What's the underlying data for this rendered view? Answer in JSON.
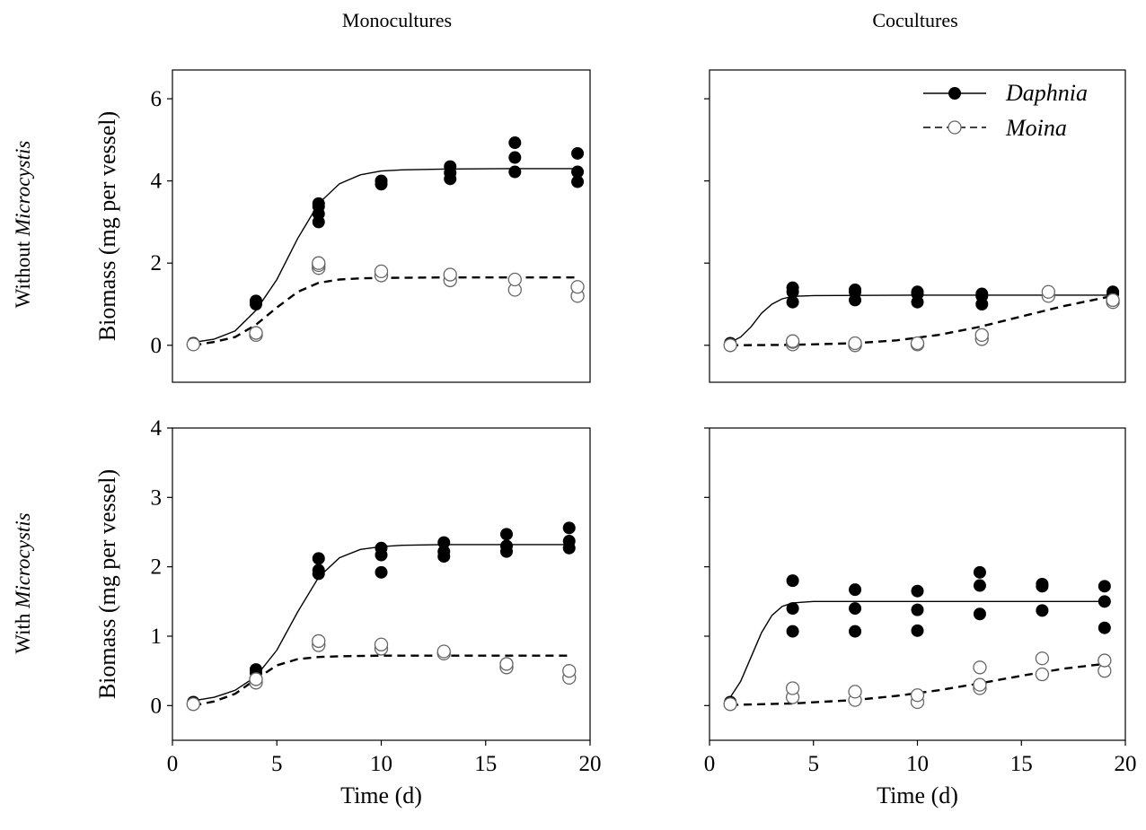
{
  "figure": {
    "col_titles": [
      "Monocultures",
      "Cocultures"
    ],
    "row_labels": [
      {
        "prefix": "Without ",
        "italic": "Microcystis"
      },
      {
        "prefix": "With ",
        "italic": "Microcystis"
      }
    ]
  },
  "legend": {
    "daphnia": "Daphnia",
    "moina": "Moina",
    "placement": "top-right of upper coculture panel"
  },
  "chart_data": [
    {
      "type": "scatter",
      "panel": "Without Microcystis, Monocultures",
      "ylabel": "Biomass (mg per vessel)",
      "xlabel": "",
      "xlim": [
        0,
        20
      ],
      "ylim": [
        -0.9,
        6.7
      ],
      "yticks": [
        0,
        2,
        4,
        6
      ],
      "xticks": [],
      "show_yticks": true,
      "show_xticks": false,
      "series": [
        {
          "name": "Daphnia",
          "marker": "filled",
          "points": [
            [
              1,
              0.05
            ],
            [
              4,
              1.0
            ],
            [
              4,
              1.08
            ],
            [
              7,
              3.0
            ],
            [
              7,
              3.2
            ],
            [
              7,
              3.38
            ],
            [
              7,
              3.45
            ],
            [
              10,
              3.92
            ],
            [
              10,
              4.0
            ],
            [
              13.3,
              4.05
            ],
            [
              13.3,
              4.2
            ],
            [
              13.3,
              4.35
            ],
            [
              16.4,
              4.22
            ],
            [
              16.4,
              4.57
            ],
            [
              16.4,
              4.93
            ],
            [
              19.4,
              3.98
            ],
            [
              19.4,
              4.22
            ],
            [
              19.4,
              4.67
            ]
          ],
          "curve": [
            [
              1,
              0.07
            ],
            [
              2,
              0.15
            ],
            [
              3,
              0.35
            ],
            [
              4,
              0.85
            ],
            [
              5,
              1.6
            ],
            [
              6,
              2.6
            ],
            [
              7,
              3.45
            ],
            [
              8,
              3.93
            ],
            [
              9,
              4.15
            ],
            [
              10,
              4.24
            ],
            [
              11,
              4.27
            ],
            [
              13,
              4.29
            ],
            [
              16,
              4.3
            ],
            [
              19.4,
              4.3
            ]
          ]
        },
        {
          "name": "Moina",
          "marker": "open",
          "points": [
            [
              1,
              0.02
            ],
            [
              4,
              0.25
            ],
            [
              4,
              0.3
            ],
            [
              7,
              1.88
            ],
            [
              7,
              1.95
            ],
            [
              7,
              2.0
            ],
            [
              10,
              1.7
            ],
            [
              10,
              1.8
            ],
            [
              13.3,
              1.58
            ],
            [
              13.3,
              1.72
            ],
            [
              16.4,
              1.35
            ],
            [
              16.4,
              1.6
            ],
            [
              19.4,
              1.2
            ],
            [
              19.4,
              1.42
            ]
          ],
          "curve": [
            [
              1,
              0.0
            ],
            [
              2,
              0.08
            ],
            [
              3,
              0.2
            ],
            [
              4,
              0.5
            ],
            [
              5,
              0.92
            ],
            [
              6,
              1.3
            ],
            [
              7,
              1.52
            ],
            [
              8,
              1.6
            ],
            [
              9,
              1.63
            ],
            [
              10,
              1.64
            ],
            [
              13,
              1.65
            ],
            [
              19.4,
              1.65
            ]
          ]
        }
      ]
    },
    {
      "type": "scatter",
      "panel": "Without Microcystis, Cocultures",
      "ylabel": "",
      "xlabel": "",
      "xlim": [
        0,
        20
      ],
      "ylim": [
        -0.9,
        6.7
      ],
      "yticks": [
        0,
        2,
        4,
        6
      ],
      "xticks": [],
      "show_yticks": false,
      "show_xticks": false,
      "series": [
        {
          "name": "Daphnia",
          "marker": "filled",
          "points": [
            [
              1,
              0.05
            ],
            [
              4,
              1.05
            ],
            [
              4,
              1.3
            ],
            [
              4,
              1.4
            ],
            [
              7,
              1.1
            ],
            [
              7,
              1.3
            ],
            [
              7,
              1.35
            ],
            [
              10,
              1.05
            ],
            [
              10,
              1.25
            ],
            [
              10,
              1.3
            ],
            [
              13.1,
              1.0
            ],
            [
              13.1,
              1.2
            ],
            [
              13.1,
              1.25
            ],
            [
              16.3,
              1.2
            ],
            [
              19.4,
              1.25
            ],
            [
              19.4,
              1.3
            ]
          ],
          "curve": [
            [
              1,
              0.07
            ],
            [
              1.5,
              0.2
            ],
            [
              2,
              0.45
            ],
            [
              2.5,
              0.78
            ],
            [
              3,
              1.0
            ],
            [
              3.5,
              1.13
            ],
            [
              4,
              1.19
            ],
            [
              5,
              1.21
            ],
            [
              10,
              1.22
            ],
            [
              19.4,
              1.22
            ]
          ]
        },
        {
          "name": "Moina",
          "marker": "open",
          "points": [
            [
              1,
              0.0
            ],
            [
              4,
              0.02
            ],
            [
              4,
              0.08
            ],
            [
              4,
              0.1
            ],
            [
              7,
              0.0
            ],
            [
              7,
              0.05
            ],
            [
              10,
              0.02
            ],
            [
              10,
              0.05
            ],
            [
              13.1,
              0.15
            ],
            [
              13.1,
              0.25
            ],
            [
              16.3,
              1.2
            ],
            [
              16.3,
              1.3
            ],
            [
              19.4,
              1.05
            ],
            [
              19.4,
              1.1
            ]
          ],
          "curve": [
            [
              1,
              0.0
            ],
            [
              4,
              0.01
            ],
            [
              7,
              0.05
            ],
            [
              9,
              0.12
            ],
            [
              11,
              0.25
            ],
            [
              13,
              0.45
            ],
            [
              15,
              0.7
            ],
            [
              17,
              0.95
            ],
            [
              19.4,
              1.2
            ]
          ]
        }
      ]
    },
    {
      "type": "scatter",
      "panel": "With Microcystis, Monocultures",
      "ylabel": "Biomass (mg per vessel)",
      "xlabel": "Time (d)",
      "xlim": [
        0,
        20
      ],
      "ylim": [
        -0.5,
        4.0
      ],
      "yticks": [
        0,
        1,
        2,
        3,
        4
      ],
      "xticks": [
        0,
        5,
        10,
        15,
        20
      ],
      "show_yticks": true,
      "show_xticks": true,
      "series": [
        {
          "name": "Daphnia",
          "marker": "filled",
          "points": [
            [
              1,
              0.05
            ],
            [
              4,
              0.47
            ],
            [
              4,
              0.52
            ],
            [
              7,
              1.9
            ],
            [
              7,
              1.95
            ],
            [
              7,
              2.12
            ],
            [
              10,
              1.92
            ],
            [
              10,
              2.17
            ],
            [
              10,
              2.27
            ],
            [
              13,
              2.15
            ],
            [
              13,
              2.22
            ],
            [
              13,
              2.35
            ],
            [
              16,
              2.22
            ],
            [
              16,
              2.3
            ],
            [
              16,
              2.47
            ],
            [
              19,
              2.27
            ],
            [
              19,
              2.37
            ],
            [
              19,
              2.56
            ]
          ],
          "curve": [
            [
              1,
              0.07
            ],
            [
              2,
              0.12
            ],
            [
              3,
              0.22
            ],
            [
              4,
              0.42
            ],
            [
              5,
              0.8
            ],
            [
              6,
              1.35
            ],
            [
              7,
              1.85
            ],
            [
              8,
              2.13
            ],
            [
              9,
              2.25
            ],
            [
              10,
              2.29
            ],
            [
              11,
              2.31
            ],
            [
              13,
              2.32
            ],
            [
              19,
              2.32
            ]
          ]
        },
        {
          "name": "Moina",
          "marker": "open",
          "points": [
            [
              1,
              0.02
            ],
            [
              4,
              0.33
            ],
            [
              4,
              0.38
            ],
            [
              7,
              0.87
            ],
            [
              7,
              0.93
            ],
            [
              10,
              0.82
            ],
            [
              10,
              0.88
            ],
            [
              13,
              0.75
            ],
            [
              13,
              0.78
            ],
            [
              16,
              0.55
            ],
            [
              16,
              0.6
            ],
            [
              19,
              0.4
            ],
            [
              19,
              0.5
            ]
          ],
          "curve": [
            [
              1,
              0.0
            ],
            [
              2,
              0.06
            ],
            [
              3,
              0.17
            ],
            [
              4,
              0.38
            ],
            [
              5,
              0.58
            ],
            [
              6,
              0.67
            ],
            [
              7,
              0.7
            ],
            [
              8,
              0.71
            ],
            [
              10,
              0.72
            ],
            [
              19,
              0.72
            ]
          ]
        }
      ]
    },
    {
      "type": "scatter",
      "panel": "With Microcystis, Cocultures",
      "ylabel": "",
      "xlabel": "Time (d)",
      "xlim": [
        0,
        20
      ],
      "ylim": [
        -0.5,
        4.0
      ],
      "yticks": [
        0,
        1,
        2,
        3,
        4
      ],
      "xticks": [
        0,
        5,
        10,
        15,
        20
      ],
      "show_yticks": false,
      "show_xticks": true,
      "series": [
        {
          "name": "Daphnia",
          "marker": "filled",
          "points": [
            [
              1,
              0.05
            ],
            [
              4,
              1.07
            ],
            [
              4,
              1.4
            ],
            [
              4,
              1.8
            ],
            [
              7,
              1.07
            ],
            [
              7,
              1.4
            ],
            [
              7,
              1.67
            ],
            [
              10,
              1.08
            ],
            [
              10,
              1.38
            ],
            [
              10,
              1.65
            ],
            [
              13,
              1.32
            ],
            [
              13,
              1.73
            ],
            [
              13,
              1.92
            ],
            [
              16,
              1.37
            ],
            [
              16,
              1.72
            ],
            [
              16,
              1.75
            ],
            [
              19,
              1.12
            ],
            [
              19,
              1.5
            ],
            [
              19,
              1.72
            ]
          ],
          "curve": [
            [
              1,
              0.12
            ],
            [
              1.5,
              0.35
            ],
            [
              2,
              0.7
            ],
            [
              2.5,
              1.05
            ],
            [
              3,
              1.3
            ],
            [
              3.5,
              1.43
            ],
            [
              4,
              1.48
            ],
            [
              5,
              1.5
            ],
            [
              10,
              1.5
            ],
            [
              19,
              1.5
            ]
          ]
        },
        {
          "name": "Moina",
          "marker": "open",
          "points": [
            [
              1,
              0.02
            ],
            [
              4,
              0.12
            ],
            [
              4,
              0.25
            ],
            [
              7,
              0.08
            ],
            [
              7,
              0.2
            ],
            [
              10,
              0.05
            ],
            [
              10,
              0.15
            ],
            [
              13,
              0.25
            ],
            [
              13,
              0.3
            ],
            [
              13,
              0.55
            ],
            [
              16,
              0.45
            ],
            [
              16,
              0.68
            ],
            [
              19,
              0.5
            ],
            [
              19,
              0.65
            ]
          ],
          "curve": [
            [
              1,
              0.01
            ],
            [
              4,
              0.03
            ],
            [
              7,
              0.08
            ],
            [
              9,
              0.14
            ],
            [
              11,
              0.22
            ],
            [
              13,
              0.32
            ],
            [
              15,
              0.43
            ],
            [
              17,
              0.53
            ],
            [
              19,
              0.6
            ]
          ]
        }
      ]
    }
  ]
}
